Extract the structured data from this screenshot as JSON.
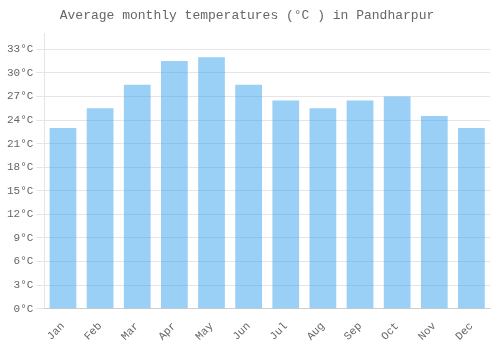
{
  "chart_data": {
    "type": "bar",
    "title": "Average monthly temperatures (°C ) in Pandharpur",
    "categories": [
      "Jan",
      "Feb",
      "Mar",
      "Apr",
      "May",
      "Jun",
      "Jul",
      "Aug",
      "Sep",
      "Oct",
      "Nov",
      "Dec"
    ],
    "values": [
      23,
      25.5,
      28.5,
      31.5,
      32,
      28.5,
      26.5,
      25.5,
      26.5,
      27,
      24.5,
      23
    ],
    "ylim": [
      0,
      35
    ],
    "yticks": [
      {
        "value": 0,
        "label": "0°C"
      },
      {
        "value": 3,
        "label": "3°C"
      },
      {
        "value": 6,
        "label": "6°C"
      },
      {
        "value": 9,
        "label": "9°C"
      },
      {
        "value": 12,
        "label": "12°C"
      },
      {
        "value": 15,
        "label": "15°C"
      },
      {
        "value": 18,
        "label": "18°C"
      },
      {
        "value": 21,
        "label": "21°C"
      },
      {
        "value": 24,
        "label": "24°C"
      },
      {
        "value": 27,
        "label": "27°C"
      },
      {
        "value": 30,
        "label": "30°C"
      },
      {
        "value": 33,
        "label": "33°C"
      }
    ],
    "grid": true
  }
}
